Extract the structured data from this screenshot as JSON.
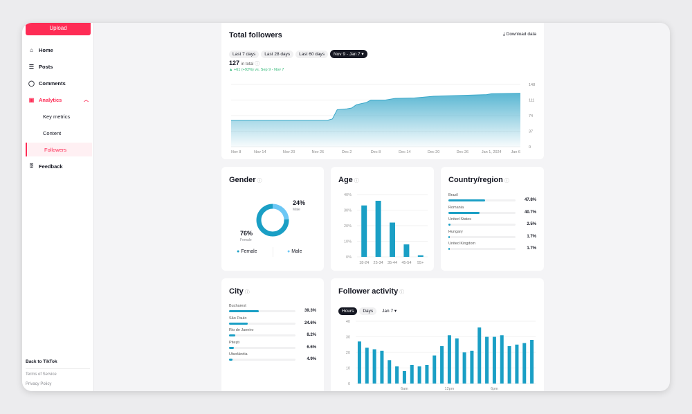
{
  "sidebar": {
    "upload": "Upload",
    "items": [
      {
        "label": "Home",
        "icon": "home-icon"
      },
      {
        "label": "Posts",
        "icon": "list-icon"
      },
      {
        "label": "Comments",
        "icon": "comment-icon"
      },
      {
        "label": "Analytics",
        "icon": "analytics-icon"
      },
      {
        "label": "Key metrics"
      },
      {
        "label": "Content"
      },
      {
        "label": "Followers"
      },
      {
        "label": "Feedback",
        "icon": "feedback-icon"
      }
    ],
    "back": "Back to TikTok",
    "terms": "Terms of Service",
    "privacy": "Privacy Policy"
  },
  "colors": {
    "accent": "#fe2c55",
    "chart": "#1a9fc5",
    "male": "#6cc7f5",
    "positive": "#2bb673"
  },
  "followers": {
    "title": "Total followers",
    "download": "Download data",
    "ranges": [
      "Last 7 days",
      "Last 28 days",
      "Last 60 days",
      "Nov 9 - Jan 7 ▾"
    ],
    "selected_range": 3,
    "total": "127",
    "total_label": "in total",
    "change": "+61 (+92%) vs. Sep 9 - Nov 7"
  },
  "gender": {
    "title": "Gender",
    "female_pct": "76%",
    "female_label": "Female",
    "male_pct": "24%",
    "male_label": "Male",
    "legend": [
      "Female",
      "Male"
    ]
  },
  "age": {
    "title": "Age"
  },
  "country": {
    "title": "Country/region",
    "rows": [
      {
        "name": "Brazil",
        "pct": "47.8%",
        "value": 47.8
      },
      {
        "name": "Romania",
        "pct": "40.7%",
        "value": 40.7
      },
      {
        "name": "United States",
        "pct": "2.5%",
        "value": 2.5
      },
      {
        "name": "Hungary",
        "pct": "1.7%",
        "value": 1.7
      },
      {
        "name": "United Kingdom",
        "pct": "1.7%",
        "value": 1.7
      }
    ]
  },
  "city": {
    "title": "City",
    "rows": [
      {
        "name": "Bucharest",
        "pct": "39.3%",
        "value": 39.3
      },
      {
        "name": "São Paulo",
        "pct": "24.6%",
        "value": 24.6
      },
      {
        "name": "Rio de Janeiro",
        "pct": "8.2%",
        "value": 8.2
      },
      {
        "name": "Piteşti",
        "pct": "6.6%",
        "value": 6.6
      },
      {
        "name": "Uberlândia",
        "pct": "4.9%",
        "value": 4.9
      }
    ]
  },
  "activity": {
    "title": "Follower activity",
    "tabs": [
      "Hours",
      "Days"
    ],
    "date": "Jan 7 ▾"
  },
  "chart_data": [
    {
      "type": "area",
      "ylim": [
        0,
        148
      ],
      "yticks": [
        "148",
        "111",
        "74",
        "37",
        "0"
      ],
      "xticks": [
        "Nov 8",
        "Nov 14",
        "Nov 20",
        "Nov 26",
        "Dec 2",
        "Dec 8",
        "Dec 14",
        "Dec 20",
        "Dec 26",
        "Jan 1, 2024",
        "Jan 6"
      ],
      "points": [
        [
          "Nov 8",
          63
        ],
        [
          "Nov 28",
          63
        ],
        [
          "Nov 29",
          66
        ],
        [
          "Nov 30",
          88
        ],
        [
          "Dec 2",
          90
        ],
        [
          "Dec 3",
          92
        ],
        [
          "Dec 4",
          100
        ],
        [
          "Dec 6",
          105
        ],
        [
          "Dec 7",
          111
        ],
        [
          "Dec 10",
          111
        ],
        [
          "Dec 12",
          115
        ],
        [
          "Dec 16",
          116
        ],
        [
          "Dec 20",
          120
        ],
        [
          "Dec 26",
          122
        ],
        [
          "Dec 31",
          124
        ],
        [
          "Jan 1",
          126
        ],
        [
          "Jan 7",
          127
        ]
      ]
    },
    {
      "type": "bar",
      "categories": [
        "18-24",
        "25-34",
        "35-44",
        "45-54",
        "55+"
      ],
      "values": [
        33,
        36,
        22,
        8,
        1
      ],
      "ylim": [
        0,
        40
      ],
      "yticks": [
        "40%",
        "30%",
        "20%",
        "10%",
        "0%"
      ]
    },
    {
      "type": "pie",
      "slices": [
        {
          "name": "Female",
          "value": 76
        },
        {
          "name": "Male",
          "value": 24
        }
      ]
    },
    {
      "type": "bar",
      "values": [
        27,
        23,
        22,
        21,
        15,
        11,
        8,
        12,
        11,
        12,
        18,
        24,
        31,
        29,
        20,
        21,
        36,
        30,
        30,
        31,
        24,
        25,
        26,
        28
      ],
      "ylim": [
        0,
        40
      ],
      "yticks": [
        "40",
        "30",
        "20",
        "10",
        "0"
      ],
      "xlabels": [
        {
          "index": 6,
          "label": "6am"
        },
        {
          "index": 12,
          "label": "12pm"
        },
        {
          "index": 18,
          "label": "6pm"
        }
      ]
    }
  ]
}
